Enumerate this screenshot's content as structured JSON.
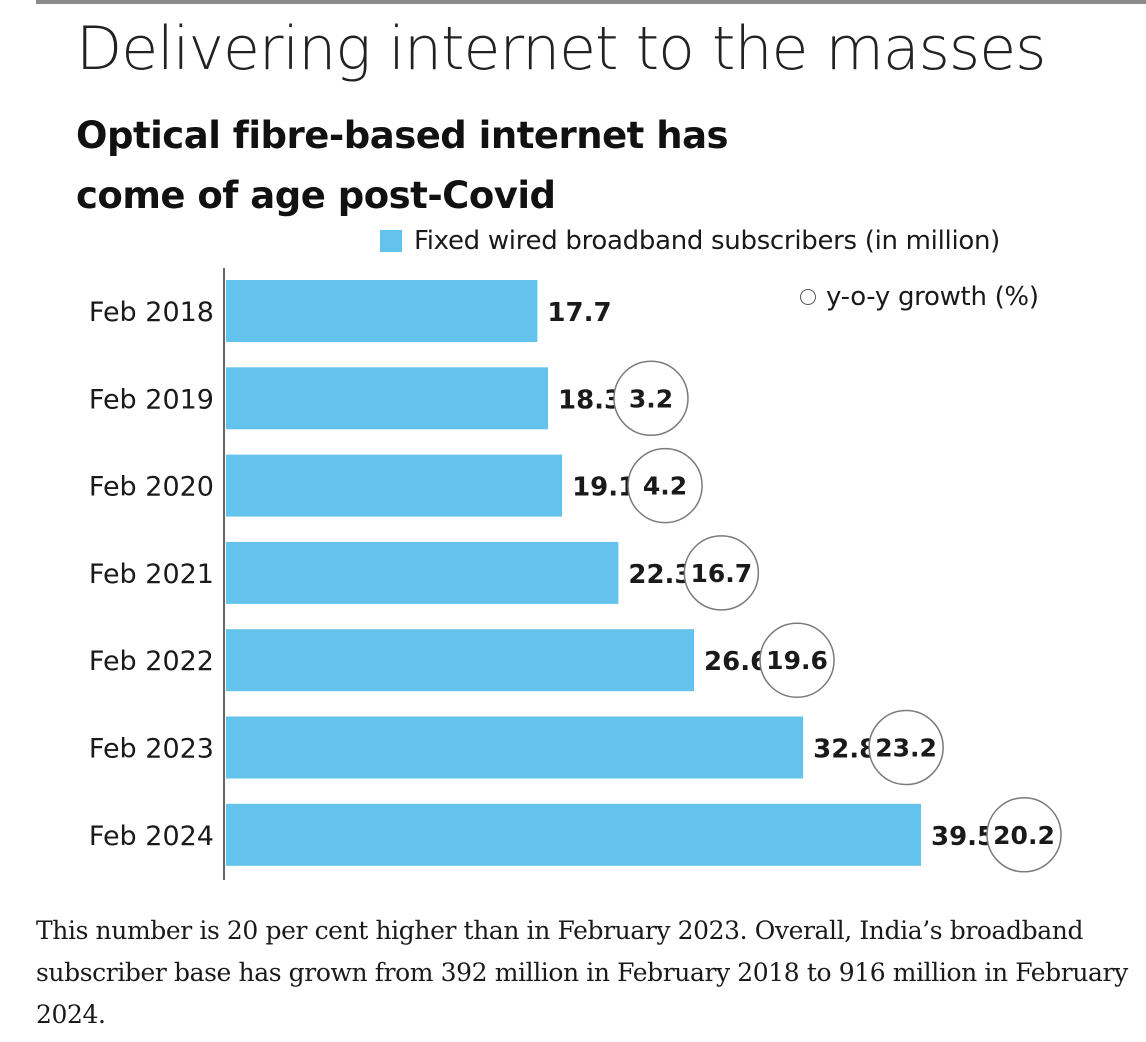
{
  "headline": "Delivering internet to the masses",
  "subheadline_line1": "Optical fibre-based internet has",
  "subheadline_line2": "come of age post-Covid",
  "legend": {
    "bars": "Fixed wired broadband subscribers (in million)",
    "circles": "y-o-y growth (%)"
  },
  "chart_data": {
    "type": "bar",
    "orientation": "horizontal",
    "categories": [
      "Feb 2018",
      "Feb 2019",
      "Feb 2020",
      "Feb 2021",
      "Feb 2022",
      "Feb 2023",
      "Feb 2024"
    ],
    "series": [
      {
        "name": "Fixed wired broadband subscribers (in million)",
        "values": [
          17.7,
          18.3,
          19.1,
          22.3,
          26.6,
          32.8,
          39.5
        ],
        "labels": [
          "17.7",
          "18.3",
          "19.1",
          "22.3",
          "26.6",
          "32.8",
          "39.5"
        ]
      },
      {
        "name": "y-o-y growth (%)",
        "values": [
          null,
          3.2,
          4.2,
          16.7,
          19.6,
          23.2,
          20.2
        ],
        "labels": [
          "",
          "3.2",
          "4.2",
          "16.7",
          "19.6",
          "23.2",
          "20.2"
        ]
      }
    ],
    "xlim": [
      0,
      39.5
    ],
    "grid": false,
    "legend_position": "top-right",
    "colors": {
      "bar": "#64c3ec",
      "circle_stroke": "#7a7a7a",
      "axis": "#333333"
    }
  },
  "footer": "This number is 20 per cent higher than in February 2023. Overall, India’s broadband subscriber base has grown from 392 million in February 2018 to 916 million in February 2024."
}
